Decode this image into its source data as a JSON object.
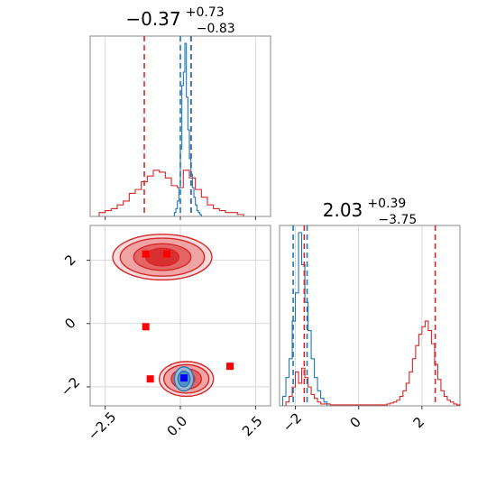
{
  "chart_data": {
    "type": "corner",
    "grid": true,
    "colors": {
      "primary": "#d62728",
      "secondary": "#1f77b4",
      "marker_red": "#ff0000",
      "marker_blue": "#0000ff"
    },
    "panels": [
      {
        "id": "hist-x",
        "type": "histogram",
        "title": {
          "value": "−0.37",
          "upper": "+0.73",
          "lower": "−0.83"
        },
        "xlim": [
          -3.0,
          3.0
        ],
        "series": [
          {
            "name": "",
            "color": "#d62728",
            "bin_edges": [
              -2.7,
              -2.5,
              -2.3,
              -2.1,
              -1.9,
              -1.7,
              -1.5,
              -1.3,
              -1.1,
              -0.9,
              -0.7,
              -0.5,
              -0.3,
              -0.1,
              0.1,
              0.3,
              0.5,
              0.7,
              0.9,
              1.1,
              1.3,
              1.5,
              1.7,
              1.9,
              2.1
            ],
            "counts": [
              0.02,
              0.03,
              0.04,
              0.06,
              0.08,
              0.12,
              0.14,
              0.18,
              0.21,
              0.24,
              0.23,
              0.2,
              0.16,
              0.15,
              0.24,
              0.2,
              0.14,
              0.1,
              0.06,
              0.04,
              0.03,
              0.02,
              0.02,
              0.01
            ],
            "quantiles": [
              -1.2,
              0.36
            ]
          },
          {
            "name": "",
            "color": "#1f77b4",
            "bin_edges": [
              -0.2,
              -0.15,
              -0.1,
              -0.05,
              0.0,
              0.05,
              0.1,
              0.15,
              0.2,
              0.25,
              0.3,
              0.35,
              0.4,
              0.45,
              0.5,
              0.55,
              0.6,
              0.65,
              0.7
            ],
            "counts": [
              0.02,
              0.04,
              0.08,
              0.15,
              0.35,
              0.68,
              0.75,
              0.9,
              0.62,
              0.45,
              0.3,
              0.22,
              0.15,
              0.1,
              0.06,
              0.03,
              0.02,
              0.01
            ],
            "quantiles": [
              0.0,
              0.35
            ]
          }
        ]
      },
      {
        "id": "hist-y",
        "type": "histogram",
        "title": {
          "value": "2.03",
          "upper": "+0.39",
          "lower": "−3.75"
        },
        "xlim": [
          -2.5,
          3.2
        ],
        "xticks": [
          {
            "value": -2,
            "label": "−2"
          },
          {
            "value": 0,
            "label": "0"
          },
          {
            "value": 2,
            "label": "2"
          }
        ],
        "series": [
          {
            "name": "",
            "color": "#d62728",
            "bin_edges": [
              -2.3,
              -2.2,
              -2.1,
              -2.0,
              -1.9,
              -1.8,
              -1.7,
              -1.6,
              -1.5,
              -1.4,
              -1.3,
              -1.2,
              -1.1,
              -1.0,
              -0.9,
              0.9,
              1.0,
              1.1,
              1.2,
              1.3,
              1.4,
              1.5,
              1.6,
              1.7,
              1.8,
              1.9,
              2.0,
              2.1,
              2.2,
              2.3,
              2.4,
              2.5,
              2.6,
              2.7,
              2.8,
              2.9,
              3.0,
              3.1,
              3.2
            ],
            "counts": [
              0.02,
              0.05,
              0.1,
              0.18,
              0.12,
              0.2,
              0.15,
              0.1,
              0.06,
              0.04,
              0.02,
              0.01,
              0.01,
              0.01,
              0.005,
              0.01,
              0.015,
              0.02,
              0.03,
              0.05,
              0.08,
              0.12,
              0.18,
              0.25,
              0.32,
              0.38,
              0.42,
              0.45,
              0.4,
              0.33,
              0.22,
              0.14,
              0.08,
              0.05,
              0.03,
              0.02,
              0.01,
              0.005
            ],
            "quantiles": [
              -1.72,
              2.42
            ]
          },
          {
            "name": "",
            "color": "#1f77b4",
            "bin_edges": [
              -2.4,
              -2.3,
              -2.2,
              -2.1,
              -2.0,
              -1.9,
              -1.8,
              -1.7,
              -1.6,
              -1.5,
              -1.4,
              -1.3,
              -1.2,
              -1.1,
              -1.0
            ],
            "counts": [
              0.05,
              0.15,
              0.25,
              0.45,
              0.6,
              0.92,
              0.75,
              0.55,
              0.4,
              0.25,
              0.15,
              0.08,
              0.04,
              0.02
            ],
            "quantiles": [
              -2.07,
              -1.63
            ]
          }
        ]
      },
      {
        "id": "scatter-2d",
        "type": "contour",
        "xlim": [
          -3.0,
          3.0
        ],
        "ylim": [
          -2.6,
          3.1
        ],
        "xticks": [
          {
            "value": -2.5,
            "label": "−2.5"
          },
          {
            "value": 0.0,
            "label": "0.0"
          },
          {
            "value": 2.5,
            "label": "2.5"
          }
        ],
        "yticks": [
          {
            "value": -2,
            "label": "−2"
          },
          {
            "value": 0,
            "label": "0"
          },
          {
            "value": 2,
            "label": "2"
          }
        ],
        "contours": [
          {
            "color": "#d62728",
            "center": [
              -0.6,
              2.1
            ],
            "radii": [
              [
                1.65,
                0.72
              ],
              [
                1.4,
                0.6
              ],
              [
                0.95,
                0.42
              ],
              [
                0.55,
                0.28
              ]
            ]
          },
          {
            "color": "#d62728",
            "center": [
              0.2,
              -1.75
            ],
            "radii": [
              [
                0.9,
                0.55
              ],
              [
                0.75,
                0.45
              ],
              [
                0.5,
                0.32
              ],
              [
                0.28,
                0.2
              ]
            ]
          },
          {
            "color": "#1f77b4",
            "center": [
              0.12,
              -1.75
            ],
            "radii": [
              [
                0.32,
                0.38
              ],
              [
                0.2,
                0.25
              ]
            ]
          }
        ],
        "markers": [
          {
            "x": -1.15,
            "y": 2.2,
            "color": "#ff0000"
          },
          {
            "x": -0.45,
            "y": 2.2,
            "color": "#ff0000"
          },
          {
            "x": -1.15,
            "y": -0.1,
            "color": "#ff0000"
          },
          {
            "x": -1.0,
            "y": -1.75,
            "color": "#ff0000"
          },
          {
            "x": 1.65,
            "y": -1.35,
            "color": "#ff0000"
          },
          {
            "x": 0.12,
            "y": -1.72,
            "color": "#0000ff"
          }
        ]
      }
    ]
  }
}
